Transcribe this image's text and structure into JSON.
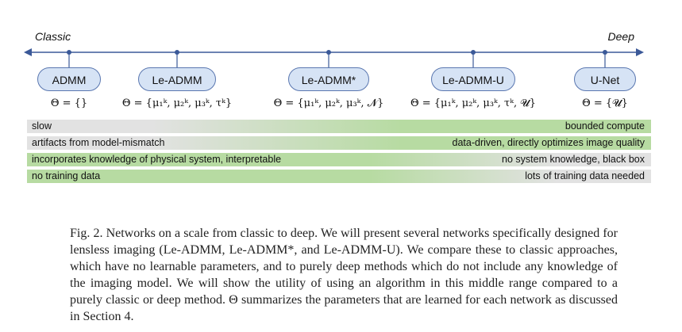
{
  "figure": {
    "axis": {
      "left_label": "Classic",
      "right_label": "Deep"
    },
    "nodes": [
      {
        "name": "ADMM",
        "theta": "Θ = {}"
      },
      {
        "name": "Le-ADMM",
        "theta": "Θ = {μ₁ᵏ, μ₂ᵏ, μ₃ᵏ, τᵏ}"
      },
      {
        "name": "Le-ADMM*",
        "theta": "Θ = {μ₁ᵏ, μ₂ᵏ, μ₃ᵏ, 𝓝}"
      },
      {
        "name": "Le-ADMM-U",
        "theta": "Θ = {μ₁ᵏ, μ₂ᵏ, μ₃ᵏ, τᵏ, 𝓤}"
      },
      {
        "name": "U-Net",
        "theta": "Θ = {𝓤}"
      }
    ],
    "bars": [
      {
        "left": "slow",
        "right": "bounded compute"
      },
      {
        "left": "artifacts from model-mismatch",
        "right": "data-driven, directly optimizes image quality"
      },
      {
        "left": "incorporates knowledge of physical system, interpretable",
        "right": "no system knowledge, black box"
      },
      {
        "left": "no training data",
        "right": "lots of training data needed"
      }
    ]
  },
  "caption": "Fig. 2.  Networks on a scale from classic to deep. We will present several networks specifically designed for lensless imaging (Le-ADMM, Le-ADMM*, and Le-ADMM-U). We compare these to classic approaches, which have no learnable parameters, and to purely deep methods which do not include any knowledge of the imaging model. We will show the utility of using an algorithm in this middle range compared to a purely classic or deep method. Θ summarizes the parameters that are learned for each network as discussed in Section 4.",
  "colors": {
    "node_fill": "#d6e3f5",
    "node_border": "#5a77b0",
    "axis": "#3b5998",
    "green": "#b7dba2",
    "gray": "#e2e2e2"
  }
}
